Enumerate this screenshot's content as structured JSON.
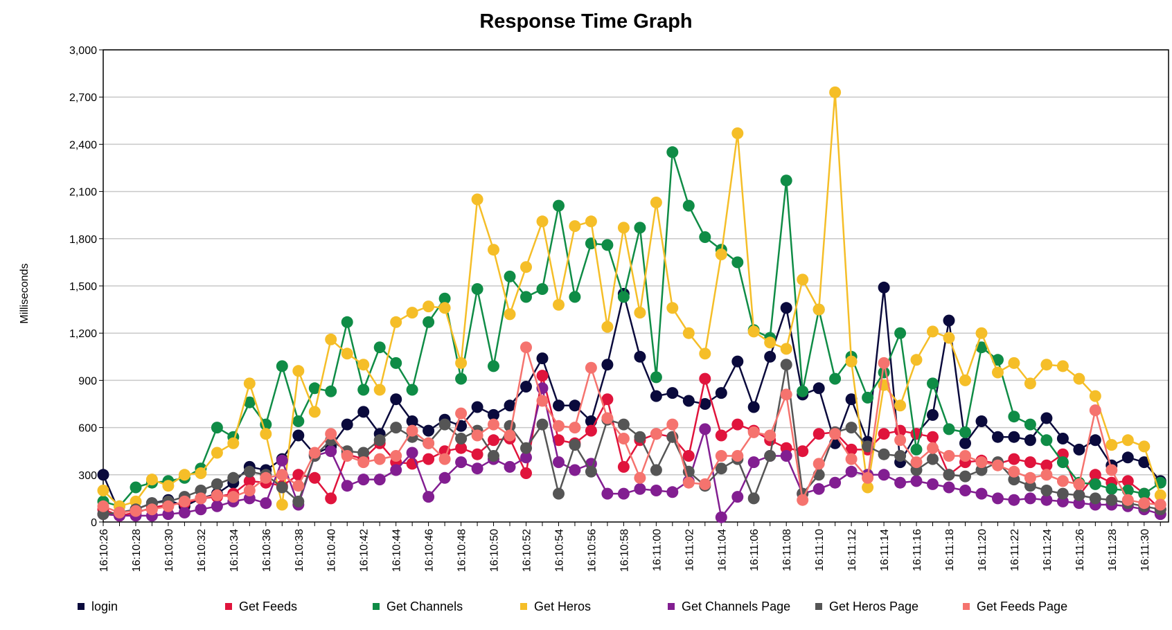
{
  "chart_data": {
    "type": "line",
    "title": "Response Time Graph",
    "ylabel": "Milliseconds",
    "xlabel": "",
    "ylim": [
      0,
      3000
    ],
    "yticks": [
      "0",
      "300",
      "600",
      "900",
      "1,200",
      "1,500",
      "1,800",
      "2,100",
      "2,400",
      "2,700",
      "3,000"
    ],
    "ytick_values": [
      0,
      300,
      600,
      900,
      1200,
      1500,
      1800,
      2100,
      2400,
      2700,
      3000
    ],
    "x_start_seconds": 26,
    "x_end_seconds": 91.5,
    "xticks": [
      "16:10:26",
      "16:10:28",
      "16:10:30",
      "16:10:32",
      "16:10:34",
      "16:10:36",
      "16:10:38",
      "16:10:40",
      "16:10:42",
      "16:10:44",
      "16:10:46",
      "16:10:48",
      "16:10:50",
      "16:10:52",
      "16:10:54",
      "16:10:56",
      "16:10:58",
      "16:11:00",
      "16:11:02",
      "16:11:04",
      "16:11:06",
      "16:11:08",
      "16:11:10",
      "16:11:12",
      "16:11:14",
      "16:11:16",
      "16:11:18",
      "16:11:20",
      "16:11:22",
      "16:11:24",
      "16:11:26",
      "16:11:28",
      "16:11:30"
    ],
    "grid": true,
    "legend_position": "bottom",
    "series": [
      {
        "name": "login",
        "color": "#0a0a3c",
        "x": [
          26,
          27,
          28,
          29,
          30,
          31,
          32,
          33,
          34,
          35,
          36,
          37,
          38,
          39,
          40,
          41,
          42,
          43,
          44,
          45,
          46,
          47,
          48,
          49,
          50,
          51,
          52,
          53,
          54,
          55,
          56,
          57,
          58,
          59,
          60,
          61,
          62,
          63,
          64,
          65,
          66,
          67,
          68,
          69,
          70,
          71,
          72,
          73,
          74,
          75,
          76,
          77,
          78,
          79,
          80,
          81,
          82,
          83,
          84,
          85,
          86,
          87,
          88,
          89,
          90,
          91
        ],
        "values": [
          300,
          60,
          80,
          120,
          140,
          100,
          150,
          180,
          250,
          350,
          330,
          400,
          550,
          430,
          480,
          620,
          700,
          560,
          780,
          640,
          580,
          650,
          610,
          730,
          680,
          740,
          860,
          1040,
          740,
          740,
          640,
          1000,
          1450,
          1050,
          800,
          820,
          770,
          750,
          820,
          1020,
          730,
          1050,
          1360,
          810,
          850,
          500,
          780,
          510,
          1490,
          380,
          560,
          680,
          1280,
          500,
          640,
          540,
          540,
          520,
          660,
          530,
          460,
          520,
          360,
          410,
          380,
          260
        ]
      },
      {
        "name": "Get Feeds",
        "color": "#e0143c",
        "x": [
          26,
          27,
          28,
          29,
          30,
          31,
          32,
          33,
          34,
          35,
          36,
          37,
          38,
          39,
          40,
          41,
          42,
          43,
          44,
          45,
          46,
          47,
          48,
          49,
          50,
          51,
          52,
          53,
          54,
          55,
          56,
          57,
          58,
          59,
          60,
          61,
          62,
          63,
          64,
          65,
          66,
          67,
          68,
          69,
          70,
          71,
          72,
          73,
          74,
          75,
          76,
          77,
          78,
          79,
          80,
          81,
          82,
          83,
          84,
          85,
          86,
          87,
          88,
          89,
          90,
          91
        ],
        "values": [
          80,
          40,
          60,
          90,
          110,
          120,
          150,
          160,
          180,
          260,
          250,
          230,
          300,
          280,
          150,
          430,
          400,
          500,
          380,
          370,
          400,
          450,
          470,
          430,
          520,
          530,
          310,
          930,
          520,
          500,
          580,
          780,
          350,
          520,
          560,
          540,
          420,
          910,
          550,
          620,
          580,
          520,
          470,
          450,
          560,
          570,
          460,
          460,
          560,
          580,
          560,
          540,
          300,
          380,
          390,
          370,
          400,
          380,
          360,
          430,
          170,
          300,
          250,
          260,
          180,
          80
        ]
      },
      {
        "name": "Get Channels",
        "color": "#0f8c46",
        "x": [
          26,
          27,
          28,
          29,
          30,
          31,
          32,
          33,
          34,
          35,
          36,
          37,
          38,
          39,
          40,
          41,
          42,
          43,
          44,
          45,
          46,
          47,
          48,
          49,
          50,
          51,
          52,
          53,
          54,
          55,
          56,
          57,
          58,
          59,
          60,
          61,
          62,
          63,
          64,
          65,
          66,
          67,
          68,
          69,
          70,
          71,
          72,
          73,
          74,
          75,
          76,
          77,
          78,
          79,
          80,
          81,
          82,
          83,
          84,
          85,
          86,
          87,
          88,
          89,
          90,
          91
        ],
        "values": [
          130,
          100,
          220,
          250,
          260,
          280,
          340,
          600,
          540,
          760,
          620,
          990,
          640,
          850,
          830,
          1270,
          840,
          1110,
          1010,
          840,
          1270,
          1420,
          910,
          1480,
          990,
          1560,
          1430,
          1480,
          2010,
          1430,
          1770,
          1760,
          1430,
          1870,
          920,
          2350,
          2010,
          1810,
          1730,
          1650,
          1220,
          1170,
          2170,
          830,
          1350,
          910,
          1050,
          790,
          950,
          1200,
          460,
          880,
          590,
          570,
          1110,
          1030,
          670,
          620,
          520,
          380,
          250,
          240,
          210,
          200,
          180,
          250
        ]
      },
      {
        "name": "Get Heros",
        "color": "#f5be28",
        "x": [
          26,
          27,
          28,
          29,
          30,
          31,
          32,
          33,
          34,
          35,
          36,
          37,
          38,
          39,
          40,
          41,
          42,
          43,
          44,
          45,
          46,
          47,
          48,
          49,
          50,
          51,
          52,
          53,
          54,
          55,
          56,
          57,
          58,
          59,
          60,
          61,
          62,
          63,
          64,
          65,
          66,
          67,
          68,
          69,
          70,
          71,
          72,
          73,
          74,
          75,
          76,
          77,
          78,
          79,
          80,
          81,
          82,
          83,
          84,
          85,
          86,
          87,
          88,
          89,
          90,
          91
        ],
        "values": [
          200,
          100,
          130,
          270,
          230,
          300,
          310,
          440,
          500,
          880,
          560,
          110,
          960,
          700,
          1160,
          1070,
          1000,
          840,
          1270,
          1330,
          1370,
          1360,
          1010,
          2050,
          1730,
          1320,
          1620,
          1910,
          1380,
          1880,
          1910,
          1240,
          1870,
          1330,
          2030,
          1360,
          1200,
          1070,
          1700,
          2470,
          1210,
          1140,
          1100,
          1540,
          1350,
          2730,
          1020,
          220,
          870,
          740,
          1030,
          1210,
          1170,
          900,
          1200,
          950,
          1010,
          880,
          1000,
          990,
          910,
          800,
          490,
          520,
          480,
          170
        ]
      },
      {
        "name": "Get Channels Page",
        "color": "#821e91",
        "x": [
          26,
          27,
          28,
          29,
          30,
          31,
          32,
          33,
          34,
          35,
          36,
          37,
          38,
          39,
          40,
          41,
          42,
          43,
          44,
          45,
          46,
          47,
          48,
          49,
          50,
          51,
          52,
          53,
          54,
          55,
          56,
          57,
          58,
          59,
          60,
          61,
          62,
          63,
          64,
          65,
          66,
          67,
          68,
          69,
          70,
          71,
          72,
          73,
          74,
          75,
          76,
          77,
          78,
          79,
          80,
          81,
          82,
          83,
          84,
          85,
          86,
          87,
          88,
          89,
          90,
          91
        ],
        "values": [
          50,
          40,
          40,
          40,
          50,
          60,
          80,
          100,
          130,
          150,
          120,
          390,
          110,
          420,
          450,
          230,
          270,
          270,
          330,
          440,
          160,
          280,
          380,
          340,
          400,
          350,
          410,
          850,
          380,
          330,
          370,
          180,
          180,
          210,
          200,
          190,
          260,
          590,
          30,
          160,
          380,
          420,
          420,
          180,
          210,
          250,
          320,
          300,
          300,
          250,
          260,
          240,
          220,
          200,
          180,
          150,
          140,
          150,
          140,
          130,
          120,
          110,
          110,
          100,
          80,
          50
        ]
      },
      {
        "name": "Get Heros Page",
        "color": "#555555",
        "x": [
          26,
          27,
          28,
          29,
          30,
          31,
          32,
          33,
          34,
          35,
          36,
          37,
          38,
          39,
          40,
          41,
          42,
          43,
          44,
          45,
          46,
          47,
          48,
          49,
          50,
          51,
          52,
          53,
          54,
          55,
          56,
          57,
          58,
          59,
          60,
          61,
          62,
          63,
          64,
          65,
          66,
          67,
          68,
          69,
          70,
          71,
          72,
          73,
          74,
          75,
          76,
          77,
          78,
          79,
          80,
          81,
          82,
          83,
          84,
          85,
          86,
          87,
          88,
          89,
          90,
          91
        ],
        "values": [
          50,
          60,
          80,
          120,
          130,
          160,
          200,
          240,
          280,
          320,
          300,
          220,
          130,
          420,
          520,
          450,
          440,
          520,
          600,
          540,
          500,
          620,
          530,
          580,
          420,
          610,
          470,
          620,
          180,
          490,
          320,
          650,
          620,
          540,
          330,
          540,
          320,
          230,
          340,
          400,
          150,
          420,
          1000,
          180,
          300,
          570,
          600,
          480,
          430,
          420,
          330,
          400,
          300,
          290,
          330,
          380,
          270,
          230,
          200,
          180,
          170,
          150,
          140,
          120,
          100,
          80
        ]
      },
      {
        "name": "Get Feeds Page",
        "color": "#f5736e",
        "x": [
          26,
          27,
          28,
          29,
          30,
          31,
          32,
          33,
          34,
          35,
          36,
          37,
          38,
          39,
          40,
          41,
          42,
          43,
          44,
          45,
          46,
          47,
          48,
          49,
          50,
          51,
          52,
          53,
          54,
          55,
          56,
          57,
          58,
          59,
          60,
          61,
          62,
          63,
          64,
          65,
          66,
          67,
          68,
          69,
          70,
          71,
          72,
          73,
          74,
          75,
          76,
          77,
          78,
          79,
          80,
          81,
          82,
          83,
          84,
          85,
          86,
          87,
          88,
          89,
          90,
          91
        ],
        "values": [
          100,
          60,
          70,
          80,
          100,
          130,
          150,
          170,
          160,
          200,
          280,
          300,
          230,
          440,
          560,
          420,
          380,
          400,
          420,
          580,
          500,
          400,
          690,
          550,
          620,
          550,
          1110,
          770,
          610,
          600,
          980,
          660,
          530,
          280,
          560,
          620,
          250,
          240,
          420,
          420,
          570,
          550,
          810,
          140,
          370,
          560,
          400,
          280,
          1010,
          520,
          380,
          470,
          420,
          420,
          380,
          360,
          320,
          280,
          300,
          260,
          240,
          710,
          330,
          140,
          120,
          110
        ]
      }
    ]
  }
}
